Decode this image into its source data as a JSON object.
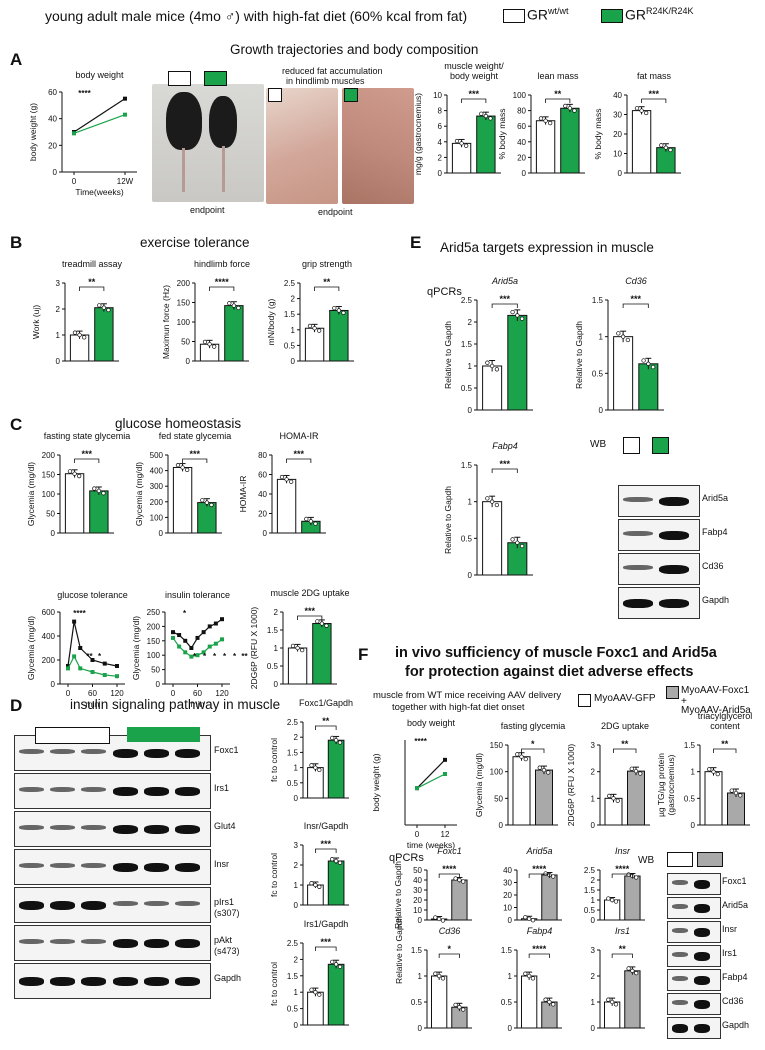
{
  "header": {
    "title": "young adult male mice (4mo ♂) with high-fat diet (60% kcal from fat)",
    "legend_wt": "GR",
    "legend_wt_sup": "wt/wt",
    "legend_mut": "GR",
    "legend_mut_sup": "R24K/R24K"
  },
  "colors": {
    "control": "#ffffff",
    "mutant": "#1aa34a",
    "aav": "#a9a9a9",
    "axis": "#111111"
  },
  "panelA": {
    "letter": "A",
    "title": "Growth trajectories and body composition",
    "photo1_caption": "endpoint",
    "photo2_title_l1": "reduced fat accumulation",
    "photo2_title_l2": "in hindlimb muscles",
    "photo2_caption": "endpoint"
  },
  "panelB": {
    "letter": "B",
    "title": "exercise tolerance"
  },
  "panelC": {
    "letter": "C",
    "title": "glucose homeostasis"
  },
  "panelD": {
    "letter": "D",
    "title": "insulin signaling pathway in muscle",
    "blots": [
      "Foxc1",
      "Irs1",
      "Glut4",
      "Insr",
      "pIrs1\n(s307)",
      "pAkt\n(s473)",
      "Gapdh"
    ]
  },
  "panelE": {
    "letter": "E",
    "title": "Arid5a targets expression in muscle",
    "qpcr_label": "qPCRs",
    "wb_label": "WB",
    "blots": [
      "Arid5a",
      "Fabp4",
      "Cd36",
      "Gapdh"
    ]
  },
  "panelF": {
    "letter": "F",
    "title_l1": "in vivo sufficiency of muscle Foxc1 and Arid5a",
    "title_l2": "for protection against diet adverse effects",
    "sub_l1": "muscle from WT mice receiving AAV delivery",
    "sub_l2": "together with high-fat diet onset",
    "legend_gfp": "MyoAAV-GFP",
    "legend_combo_l1": "MyoAAV-Foxc1",
    "legend_combo_l2": "+",
    "legend_combo_l3": "MyoAAV-Arid5a",
    "qpcr_label": "qPCRs",
    "wb_label": "WB",
    "blots": [
      "Foxc1",
      "Arid5a",
      "Insr",
      "Irs1",
      "Fabp4",
      "Cd36",
      "Gapdh"
    ]
  },
  "chart_data": [
    {
      "id": "A-bw",
      "type": "line",
      "title": "body weight",
      "ylabel": "body weight (g)",
      "xlabel": "Time(weeks)",
      "categories": [
        "0",
        "12W"
      ],
      "ylim": [
        0,
        60
      ],
      "yticks": [
        0,
        20,
        40,
        60
      ],
      "series": [
        {
          "values": [
            30,
            55
          ]
        },
        {
          "values": [
            29,
            43
          ]
        }
      ],
      "annotations": [
        "****"
      ]
    },
    {
      "id": "A-mw",
      "type": "bar",
      "title": "muscle weight/\nbody weight",
      "ylabel": "mg/g (gastrocnemius)",
      "values": [
        3.8,
        7.3
      ],
      "ylim": [
        0,
        10
      ],
      "yticks": [
        0,
        2,
        4,
        6,
        8,
        10
      ],
      "annotations": [
        "***"
      ]
    },
    {
      "id": "A-lean",
      "type": "bar",
      "title": "lean mass",
      "ylabel": "% body mass",
      "values": [
        67,
        83
      ],
      "ylim": [
        0,
        100
      ],
      "yticks": [
        0,
        20,
        40,
        60,
        80,
        100
      ],
      "annotations": [
        "**"
      ]
    },
    {
      "id": "A-fat",
      "type": "bar",
      "title": "fat mass",
      "ylabel": "% body mass",
      "values": [
        32,
        13
      ],
      "ylim": [
        0,
        40
      ],
      "yticks": [
        0,
        10,
        20,
        30,
        40
      ],
      "annotations": [
        "***"
      ]
    },
    {
      "id": "B-tread",
      "type": "bar",
      "title": "treadmill assay",
      "ylabel": "Work (uj)",
      "values": [
        1.0,
        2.05
      ],
      "ylim": [
        0,
        3
      ],
      "yticks": [
        0,
        1,
        2,
        3
      ],
      "annotations": [
        "**"
      ]
    },
    {
      "id": "B-force",
      "type": "bar",
      "title": "hindlimb force",
      "ylabel": "Maximun force (Hz)",
      "values": [
        43,
        142
      ],
      "ylim": [
        0,
        200
      ],
      "yticks": [
        0,
        50,
        100,
        150,
        200
      ],
      "annotations": [
        "****"
      ]
    },
    {
      "id": "B-grip",
      "type": "bar",
      "title": "grip strength",
      "ylabel": "mN/body (g)",
      "values": [
        1.05,
        1.62
      ],
      "ylim": [
        0,
        2.5
      ],
      "yticks": [
        0,
        0.5,
        1,
        1.5,
        2,
        2.5
      ],
      "annotations": [
        "**"
      ]
    },
    {
      "id": "C-fast",
      "type": "bar",
      "title": "fasting state glycemia",
      "ylabel": "Glycemia (mg/dl)",
      "values": [
        152,
        108
      ],
      "ylim": [
        0,
        200
      ],
      "yticks": [
        0,
        50,
        100,
        150,
        200
      ],
      "annotations": [
        "***"
      ]
    },
    {
      "id": "C-fed",
      "type": "bar",
      "title": "fed state glycemia",
      "ylabel": "Glycemia (mg/dl)",
      "values": [
        420,
        195
      ],
      "ylim": [
        0,
        500
      ],
      "yticks": [
        0,
        100,
        200,
        300,
        400,
        500
      ],
      "annotations": [
        "***"
      ]
    },
    {
      "id": "C-homa",
      "type": "bar",
      "title": "HOMA-IR",
      "ylabel": "HOMA-IR",
      "values": [
        55,
        12
      ],
      "ylim": [
        0,
        80
      ],
      "yticks": [
        0,
        20,
        40,
        60,
        80
      ],
      "annotations": [
        "***"
      ]
    },
    {
      "id": "C-gtt",
      "type": "line",
      "title": "glucose tolerance",
      "ylabel": "Glycemia (mg/dl)",
      "xlabel": "min",
      "x": [
        0,
        15,
        30,
        60,
        90,
        120
      ],
      "xticks": [
        0,
        60,
        120
      ],
      "ylim": [
        0,
        600
      ],
      "yticks": [
        0,
        200,
        400,
        600
      ],
      "series": [
        {
          "values": [
            150,
            520,
            300,
            200,
            170,
            150
          ]
        },
        {
          "values": [
            130,
            230,
            130,
            100,
            75,
            65
          ]
        }
      ],
      "annotations": [
        "****",
        "**",
        "*"
      ]
    },
    {
      "id": "C-itt",
      "type": "line",
      "title": "insulin tolerance",
      "ylabel": "Glycemia (mg/dl)",
      "xlabel": "min",
      "x": [
        0,
        15,
        30,
        45,
        60,
        75,
        90,
        105,
        120
      ],
      "xticks": [
        0,
        60,
        120
      ],
      "ylim": [
        0,
        250
      ],
      "yticks": [
        0,
        50,
        100,
        150,
        200,
        250
      ],
      "series": [
        {
          "values": [
            180,
            170,
            150,
            125,
            160,
            180,
            200,
            210,
            225
          ]
        },
        {
          "values": [
            160,
            130,
            110,
            95,
            100,
            110,
            130,
            140,
            155
          ]
        }
      ],
      "annotations": [
        "*",
        "*",
        "*",
        "*",
        "*",
        "*",
        "**"
      ]
    },
    {
      "id": "C-2dg",
      "type": "bar",
      "title": "muscle 2DG uptake",
      "ylabel": "2DG6P (RFU X 1000)",
      "values": [
        1.0,
        1.68
      ],
      "ylim": [
        0,
        2
      ],
      "yticks": [
        0,
        0.5,
        1,
        1.5,
        2
      ],
      "annotations": [
        "***"
      ]
    },
    {
      "id": "D-foxc1",
      "type": "bar",
      "title": "Foxc1/Gapdh",
      "ylabel": "fc to control",
      "values": [
        1.0,
        1.9
      ],
      "ylim": [
        0,
        2.5
      ],
      "yticks": [
        0,
        0.5,
        1,
        1.5,
        2,
        2.5
      ],
      "annotations": [
        "**"
      ]
    },
    {
      "id": "D-insr",
      "type": "bar",
      "title": "Insr/Gapdh",
      "ylabel": "fc to control",
      "values": [
        1.0,
        2.2
      ],
      "ylim": [
        0,
        3
      ],
      "yticks": [
        0,
        1,
        2,
        3
      ],
      "annotations": [
        "***"
      ]
    },
    {
      "id": "D-irs1",
      "type": "bar",
      "title": "Irs1/Gapdh",
      "ylabel": "fc to control",
      "values": [
        1.0,
        1.85
      ],
      "ylim": [
        0,
        2.5
      ],
      "yticks": [
        0,
        0.5,
        1,
        1.5,
        2,
        2.5
      ],
      "annotations": [
        "***"
      ]
    },
    {
      "id": "E-arid5a",
      "type": "bar",
      "title": "Arid5a",
      "ylabel": "Relative to Gapdh",
      "values": [
        1.0,
        2.15
      ],
      "ylim": [
        0,
        2.5
      ],
      "yticks": [
        0,
        0.5,
        1,
        1.5,
        2,
        2.5
      ],
      "annotations": [
        "***"
      ]
    },
    {
      "id": "E-cd36",
      "type": "bar",
      "title": "Cd36",
      "ylabel": "Relative to Gapdh",
      "values": [
        1.0,
        0.63
      ],
      "ylim": [
        0,
        1.5
      ],
      "yticks": [
        0,
        0.5,
        1,
        1.5
      ],
      "annotations": [
        "***"
      ]
    },
    {
      "id": "E-fabp4",
      "type": "bar",
      "title": "Fabp4",
      "ylabel": "Relative to Gapdh",
      "values": [
        1.0,
        0.44
      ],
      "ylim": [
        0,
        1.5
      ],
      "yticks": [
        0,
        0.5,
        1,
        1.5
      ],
      "annotations": [
        "***"
      ]
    },
    {
      "id": "F-bw",
      "type": "line",
      "title": "body weight",
      "ylabel": "body weight (g)",
      "xlabel": "time (weeks)",
      "categories": [
        "0",
        "12"
      ],
      "series": [
        {
          "values": [
            26,
            46
          ]
        },
        {
          "values": [
            26,
            36
          ]
        }
      ],
      "annotations": [
        "****"
      ]
    },
    {
      "id": "F-fast",
      "type": "bar",
      "title": "fasting glycemia",
      "ylabel": "Glycemia (mg/dl)",
      "values": [
        128,
        103
      ],
      "ylim": [
        0,
        150
      ],
      "yticks": [
        0,
        50,
        100,
        150
      ],
      "annotations": [
        "*"
      ]
    },
    {
      "id": "F-2dg",
      "type": "bar",
      "title": "2DG uptake",
      "ylabel": "2DG6P (RFU X 1000)",
      "values": [
        1.0,
        2.02
      ],
      "ylim": [
        0,
        3
      ],
      "yticks": [
        0,
        1,
        2,
        3
      ],
      "annotations": [
        "**"
      ]
    },
    {
      "id": "F-tg",
      "type": "bar",
      "title": "triacylglycerol\ncontent",
      "ylabel": "µg TG/µg protein\n(gastrocnemius)",
      "values": [
        1.0,
        0.6
      ],
      "ylim": [
        0,
        1.5
      ],
      "yticks": [
        0,
        0.5,
        1,
        1.5
      ],
      "annotations": [
        "**"
      ]
    },
    {
      "id": "F-foxc1",
      "type": "bar",
      "title": "Foxc1",
      "ylabel": "Relative to Gapdh",
      "values": [
        1,
        40
      ],
      "ylim": [
        0,
        50
      ],
      "yticks": [
        0,
        10,
        20,
        30,
        40,
        50
      ],
      "annotations": [
        "****"
      ]
    },
    {
      "id": "F-arid5a",
      "type": "bar",
      "title": "Arid5a",
      "values": [
        1,
        36
      ],
      "ylim": [
        0,
        40
      ],
      "yticks": [
        0,
        10,
        20,
        30,
        40
      ],
      "annotations": [
        "****"
      ]
    },
    {
      "id": "F-insr",
      "type": "bar",
      "title": "Insr",
      "values": [
        1,
        2.2
      ],
      "ylim": [
        0,
        2.5
      ],
      "yticks": [
        0,
        0.5,
        1,
        1.5,
        2,
        2.5
      ],
      "annotations": [
        "****"
      ]
    },
    {
      "id": "F-cd36",
      "type": "bar",
      "title": "Cd36",
      "values": [
        1.0,
        0.4
      ],
      "ylim": [
        0,
        1.5
      ],
      "yticks": [
        0,
        0.5,
        1,
        1.5
      ],
      "annotations": [
        "*"
      ]
    },
    {
      "id": "F-fabp4",
      "type": "bar",
      "title": "Fabp4",
      "values": [
        1.0,
        0.5
      ],
      "ylim": [
        0,
        1.5
      ],
      "yticks": [
        0,
        0.5,
        1,
        1.5
      ],
      "annotations": [
        "****"
      ]
    },
    {
      "id": "F-irs1",
      "type": "bar",
      "title": "Irs1",
      "values": [
        1.0,
        2.2
      ],
      "ylim": [
        0,
        3
      ],
      "yticks": [
        0,
        1,
        2,
        3
      ],
      "annotations": [
        "**"
      ]
    }
  ]
}
